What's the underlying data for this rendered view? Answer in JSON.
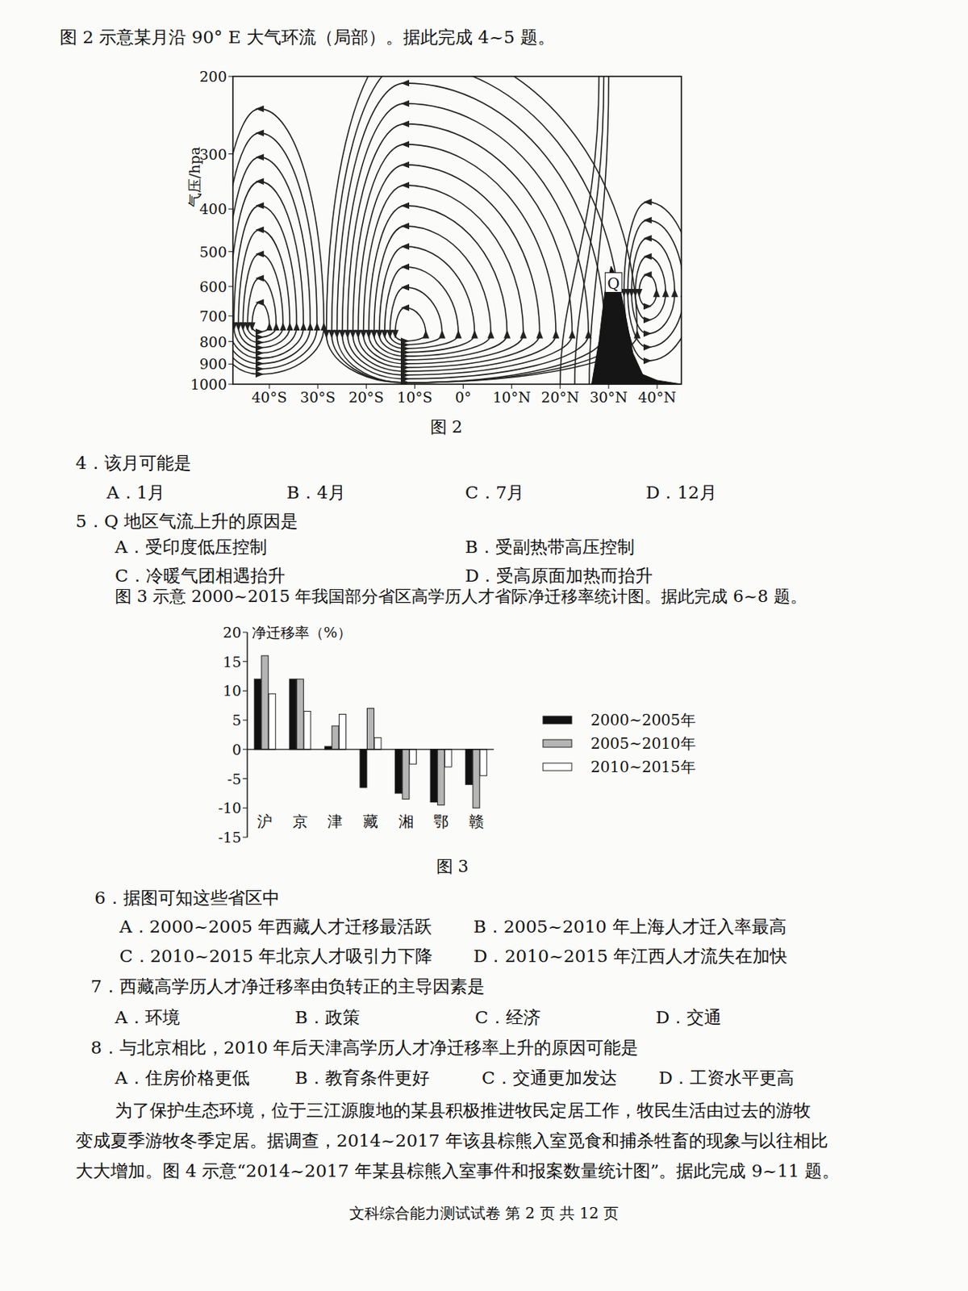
{
  "header": "图 2 示意某月沿 90° E 大气环流（局部）。据此完成 4~5 题。",
  "figure2": {
    "ylabel": "气压/hpa",
    "ylim": [
      200,
      1000
    ],
    "log": "y",
    "yticks": [
      200,
      300,
      400,
      500,
      600,
      700,
      800,
      900,
      1000
    ],
    "xlim": [
      -47.5,
      45
    ],
    "xticks": [
      {
        "value": -40,
        "label": "40°S"
      },
      {
        "value": -30,
        "label": "30°S"
      },
      {
        "value": -20,
        "label": "20°S"
      },
      {
        "value": -10,
        "label": "10°S"
      },
      {
        "value": 0,
        "label": "0°"
      },
      {
        "value": 10,
        "label": "10°N"
      },
      {
        "value": 20,
        "label": "20°N"
      },
      {
        "value": 30,
        "label": "30°N"
      },
      {
        "value": 40,
        "label": "40°N"
      }
    ],
    "q_label": "Q",
    "caption": "图 2"
  },
  "q4": {
    "stem": "4．该月可能是",
    "options": [
      "A．1月",
      "B．4月",
      "C．7月",
      "D．12月"
    ]
  },
  "q5": {
    "stem": "5．Q 地区气流上升的原因是",
    "options": [
      "A．受印度低压控制",
      "B．受副热带高压控制",
      "C．冷暖气团相遇抬升",
      "D．受高原面加热而抬升"
    ]
  },
  "figure3_intro": "图 3 示意 2000~2015 年我国部分省区高学历人才省际净迁移率统计图。据此完成 6~8 题。",
  "chart_data": {
    "type": "bar",
    "y_label": "净迁移率（%）",
    "categories": [
      "沪",
      "京",
      "津",
      "藏",
      "湘",
      "鄂",
      "赣"
    ],
    "series": [
      {
        "name": "2000~2005年",
        "color": "#111111",
        "values": [
          12,
          12,
          0.5,
          -6.5,
          -7.5,
          -9,
          -6
        ]
      },
      {
        "name": "2005~2010年",
        "color": "#b5b5b5",
        "values": [
          16,
          12,
          4,
          7,
          -8.5,
          -9.5,
          -10
        ]
      },
      {
        "name": "2010~2015年",
        "color": "#ffffff",
        "values": [
          9.5,
          6.5,
          6,
          2,
          -2.5,
          -3,
          -4.5
        ]
      }
    ],
    "ylim": [
      -15,
      20
    ],
    "yticks": [
      20,
      15,
      10,
      5,
      0,
      -5,
      -10,
      -15
    ],
    "grid": false,
    "legend": "right",
    "caption": "图 3"
  },
  "q6": {
    "stem": "6．据图可知这些省区中",
    "options": [
      "A．2000~2005 年西藏人才迁移最活跃",
      "B．2005~2010 年上海人才迁入率最高",
      "C．2010~2015 年北京人才吸引力下降",
      "D．2010~2015 年江西人才流失在加快"
    ]
  },
  "q7": {
    "stem": "7．西藏高学历人才净迁移率由负转正的主导因素是",
    "options": [
      "A．环境",
      "B．政策",
      "C．经济",
      "D．交通"
    ]
  },
  "q8": {
    "stem": "8．与北京相比，2010 年后天津高学历人才净迁移率上升的原因可能是",
    "options": [
      "A．住房价格更低",
      "B．教育条件更好",
      "C．交通更加发达",
      "D．工资水平更高"
    ]
  },
  "passage": [
    "为了保护生态环境，位于三江源腹地的某县积极推进牧民定居工作，牧民生活由过去的游牧",
    "变成夏季游牧冬季定居。据调查，2014~2017 年该县棕熊入室觅食和捕杀牲畜的现象与以往相比",
    "大大增加。图 4 示意“2014~2017 年某县棕熊入室事件和报案数量统计图”。据此完成 9~11 题。"
  ],
  "footer": "文科综合能力测试试卷 第 2 页 共 12 页"
}
